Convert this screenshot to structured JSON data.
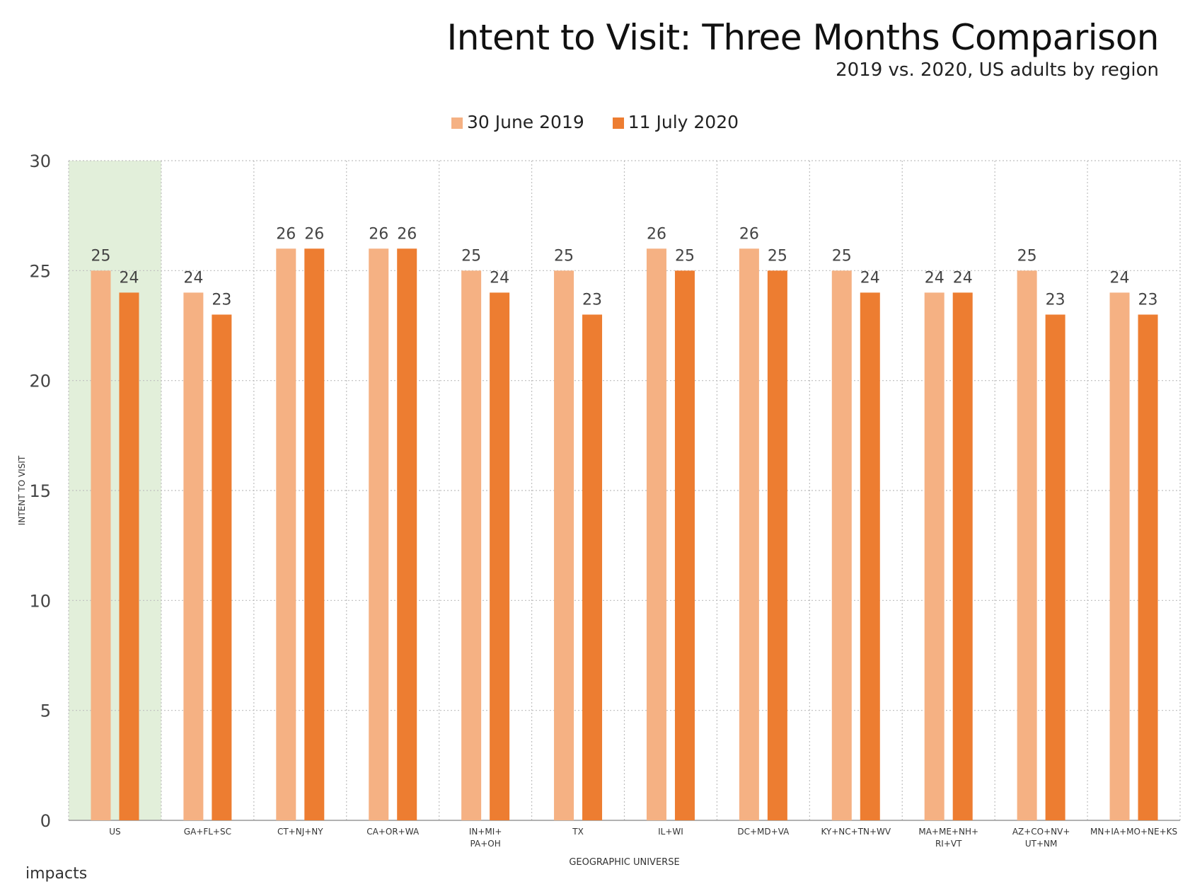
{
  "header": {
    "title": "Intent to Visit: Three Months Comparison",
    "subtitle": "2019 vs. 2020, US adults by region"
  },
  "logo_text": "impacts",
  "chart_data": {
    "type": "bar",
    "categories": [
      [
        "US"
      ],
      [
        "GA+FL+SC"
      ],
      [
        "CT+NJ+NY"
      ],
      [
        "CA+OR+WA"
      ],
      [
        "IN+MI+",
        "PA+OH"
      ],
      [
        "TX"
      ],
      [
        "IL+WI"
      ],
      [
        "DC+MD+VA"
      ],
      [
        "KY+NC+TN+WV"
      ],
      [
        "MA+ME+NH+",
        "RI+VT"
      ],
      [
        "AZ+CO+NV+",
        "UT+NM"
      ],
      [
        "MN+IA+MO+NE+KS"
      ]
    ],
    "series": [
      {
        "name": "30 June 2019",
        "color": "#f5b183",
        "values": [
          25,
          24,
          26,
          26,
          25,
          25,
          26,
          26,
          25,
          24,
          25,
          24
        ]
      },
      {
        "name": "11 July 2020",
        "color": "#ed7d31",
        "values": [
          24,
          23,
          26,
          26,
          24,
          23,
          25,
          25,
          24,
          24,
          23,
          23
        ]
      }
    ],
    "xlabel": "GEOGRAPHIC UNIVERSE",
    "ylabel": "INTENT TO VISIT",
    "ylim": [
      0,
      30
    ],
    "yticks": [
      0,
      5,
      10,
      15,
      20,
      25,
      30
    ],
    "grid": true,
    "legend": "top-center",
    "highlight_category": "US",
    "highlight_color": "#e2efda"
  }
}
